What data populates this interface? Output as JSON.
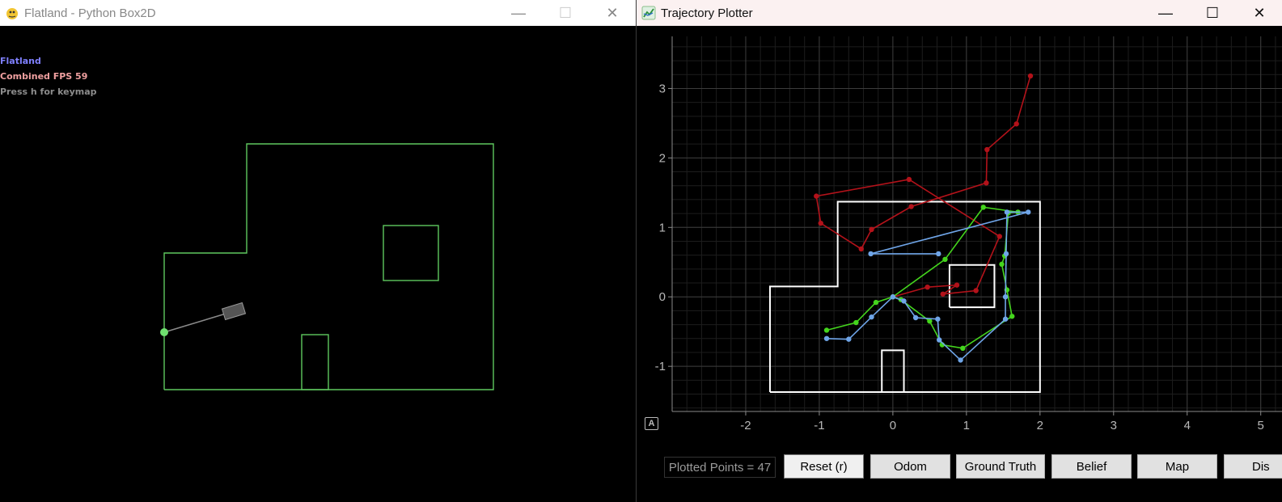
{
  "left_window": {
    "title": "Flatland - Python Box2D",
    "icon": "pygame-snake-icon",
    "controls": [
      "—",
      "☐",
      "✕"
    ],
    "hud": {
      "line1": "Flatland",
      "line2": "Combined FPS 59",
      "line3": "Press h for keymap",
      "colors": {
        "line1": "#7f80ff",
        "line2": "#f0a0a0",
        "line3": "#8c8c8c"
      }
    }
  },
  "right_window": {
    "title": "Trajectory Plotter",
    "icon": "chart-icon",
    "controls": [
      "—",
      "☐",
      "✕"
    ],
    "auto_button": "A",
    "plotted_points": "Plotted Points = 47",
    "buttons": [
      "Reset (r)",
      "Odom",
      "Ground Truth",
      "Belief",
      "Map",
      "Dis"
    ]
  },
  "chart_data": {
    "type": "line",
    "xlim": [
      -3.0,
      5.3
    ],
    "ylim": [
      -1.65,
      3.75
    ],
    "x_ticks": [
      -2,
      -1,
      0,
      1,
      2,
      3,
      4,
      5
    ],
    "y_ticks": [
      -1,
      0,
      1,
      2,
      3
    ],
    "grid": true,
    "series": [
      {
        "color": "#b3121a",
        "points": [
          [
            1.87,
            3.18
          ],
          [
            1.68,
            2.49
          ],
          [
            1.28,
            2.12
          ],
          [
            1.27,
            1.64
          ],
          [
            0.25,
            1.3
          ],
          [
            -0.29,
            0.97
          ],
          [
            -0.43,
            0.69
          ],
          [
            -0.98,
            1.06
          ],
          [
            -1.04,
            1.45
          ],
          [
            0.22,
            1.69
          ],
          [
            1.45,
            0.87
          ],
          [
            1.13,
            0.09
          ],
          [
            0.68,
            0.04
          ],
          [
            0.87,
            0.17
          ],
          [
            0.47,
            0.14
          ],
          [
            0.0,
            0.0
          ]
        ]
      },
      {
        "color": "#44d51d",
        "points": [
          [
            -0.9,
            -0.48
          ],
          [
            -0.5,
            -0.37
          ],
          [
            -0.23,
            -0.08
          ],
          [
            0.0,
            0.0
          ],
          [
            0.11,
            -0.04
          ],
          [
            0.5,
            -0.35
          ],
          [
            0.67,
            -0.69
          ],
          [
            0.95,
            -0.74
          ],
          [
            1.62,
            -0.28
          ],
          [
            1.55,
            0.1
          ],
          [
            1.48,
            0.47
          ],
          [
            1.52,
            0.59
          ],
          [
            1.57,
            1.21
          ],
          [
            1.7,
            1.22
          ],
          [
            1.23,
            1.29
          ],
          [
            0.71,
            0.54
          ],
          [
            0.0,
            0.0
          ]
        ]
      },
      {
        "color": "#6fa5e8",
        "points": [
          [
            -0.9,
            -0.6
          ],
          [
            -0.6,
            -0.61
          ],
          [
            -0.29,
            -0.29
          ],
          [
            0.0,
            0.0
          ],
          [
            0.15,
            -0.06
          ],
          [
            0.31,
            -0.3
          ],
          [
            0.61,
            -0.32
          ],
          [
            0.63,
            -0.62
          ],
          [
            0.92,
            -0.91
          ],
          [
            1.53,
            -0.32
          ],
          [
            1.53,
            0.0
          ],
          [
            1.54,
            0.62
          ],
          [
            1.55,
            1.22
          ],
          [
            1.84,
            1.22
          ],
          [
            -0.3,
            0.62
          ],
          [
            0.62,
            0.62
          ]
        ]
      }
    ],
    "map_outline": [
      [
        -1.67,
        -1.37
      ],
      [
        2.0,
        -1.37
      ],
      [
        2.0,
        1.37
      ],
      [
        -0.75,
        1.37
      ],
      [
        -0.75,
        0.15
      ],
      [
        -1.67,
        0.15
      ],
      [
        -1.67,
        -1.37
      ]
    ],
    "map_obstacles": [
      [
        [
          0.77,
          -0.15
        ],
        [
          1.38,
          -0.15
        ],
        [
          1.38,
          0.46
        ],
        [
          0.77,
          0.46
        ],
        [
          0.77,
          -0.15
        ]
      ],
      [
        [
          -0.15,
          -1.37
        ],
        [
          0.15,
          -1.37
        ],
        [
          0.15,
          -0.77
        ],
        [
          -0.15,
          -0.77
        ],
        [
          -0.15,
          -1.37
        ]
      ]
    ]
  }
}
